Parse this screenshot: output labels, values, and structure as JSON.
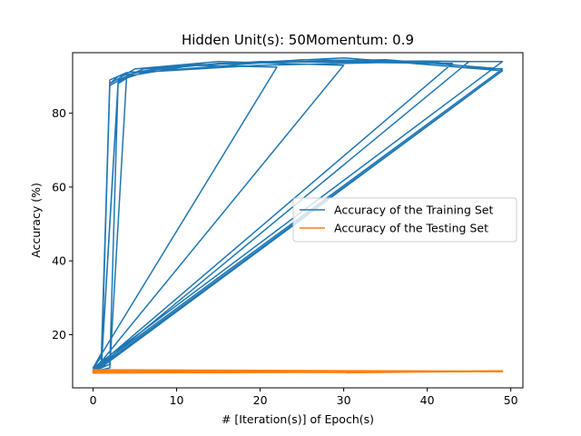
{
  "chart_data": {
    "type": "line",
    "title": "Hidden Unit(s): 50Momentum: 0.9",
    "xlabel": "# [Iteration(s)] of Epoch(s)",
    "ylabel": "Accuracy (%)",
    "xlim": [
      -2.45,
      51.45
    ],
    "ylim": [
      5.6,
      96.4
    ],
    "xticks": [
      0,
      10,
      20,
      30,
      40,
      50
    ],
    "yticks": [
      20,
      40,
      60,
      80
    ],
    "grid": false,
    "legend_position": "center-right",
    "series": [
      {
        "name": "Accuracy of the Training Set",
        "color": "#1f77b4",
        "x": [
          0,
          1,
          2,
          3,
          10,
          25,
          49,
          0,
          1,
          2,
          4,
          15,
          35,
          49,
          0,
          1,
          3,
          5,
          20,
          40,
          49,
          0,
          1,
          2,
          4,
          12,
          22,
          0,
          1,
          2,
          5,
          15,
          30,
          0,
          2,
          3,
          6,
          20,
          43,
          0,
          1,
          3,
          5,
          25,
          45,
          0,
          2,
          4,
          8,
          30,
          49,
          0
        ],
        "y": [
          10,
          11,
          88,
          90,
          93,
          94,
          94,
          11,
          14,
          89,
          91,
          93.5,
          94.5,
          92,
          10.5,
          12,
          88.5,
          91,
          93,
          94,
          91.5,
          10,
          13,
          87.5,
          90,
          93,
          92.5,
          11,
          15,
          88,
          92,
          94,
          93,
          10,
          12,
          89,
          92,
          94,
          93.5,
          10.5,
          11.5,
          88,
          91,
          94.5,
          94,
          10,
          11,
          89.5,
          92.5,
          95,
          91.5,
          9.5
        ]
      },
      {
        "name": "Accuracy of the Testing Set",
        "color": "#ff7f0e",
        "x": [
          0,
          10,
          20,
          30,
          40,
          49,
          0,
          15,
          30,
          49,
          0,
          20,
          49,
          0,
          25,
          49,
          0,
          49
        ],
        "y": [
          10.2,
          10,
          10.3,
          9.9,
          10.1,
          10.1,
          9.8,
          10.2,
          9.7,
          10.1,
          10.5,
          10.1,
          10.0,
          10.3,
          9.9,
          10.2,
          9.6,
          10.0
        ]
      }
    ]
  }
}
